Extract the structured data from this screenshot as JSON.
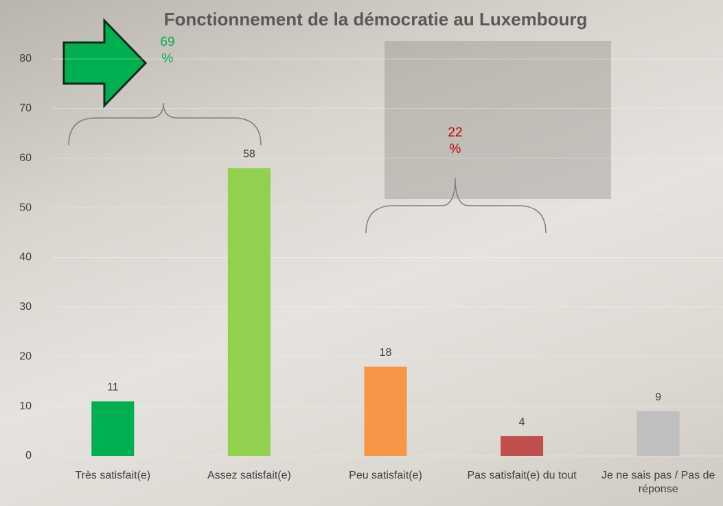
{
  "chart_data": {
    "type": "bar",
    "title": "Fonctionnement de la démocratie au Luxembourg",
    "categories": [
      "Très satisfait(e)",
      "Assez satisfait(e)",
      "Peu satisfait(e)",
      "Pas satisfait(e) du tout",
      "Je ne sais pas / Pas de réponse"
    ],
    "values": [
      11,
      58,
      18,
      4,
      9
    ],
    "colors": [
      "#00b050",
      "#92d050",
      "#f79646",
      "#c0504d",
      "#bfbfbf"
    ],
    "ylim": [
      0,
      80
    ],
    "yticks": [
      0,
      10,
      20,
      30,
      40,
      50,
      60,
      70,
      80
    ],
    "grid": true,
    "annotations": [
      {
        "text": "69 %",
        "color": "#00b050"
      },
      {
        "text": "22 %",
        "color": "#c00000"
      }
    ]
  }
}
